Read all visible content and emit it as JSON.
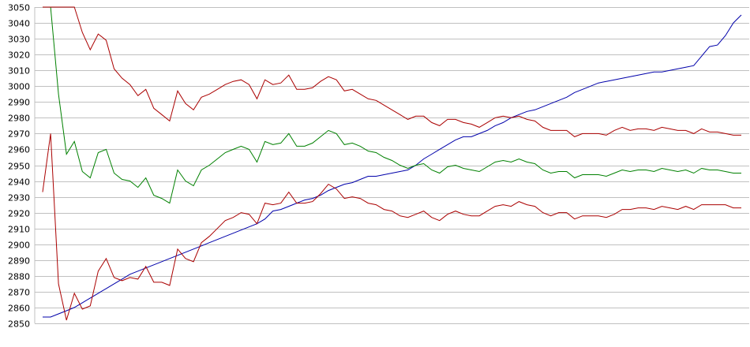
{
  "chart_data": {
    "type": "line",
    "title": "",
    "xlabel": "",
    "ylabel": "",
    "ylim": [
      2850,
      3050
    ],
    "yticks": [
      3050,
      3040,
      3030,
      3020,
      3010,
      3000,
      2990,
      2980,
      2970,
      2960,
      2950,
      2940,
      2930,
      2920,
      2910,
      2900,
      2890,
      2880,
      2870,
      2860,
      2850
    ],
    "grid": true,
    "legend": "none",
    "x": [
      1,
      2,
      3,
      4,
      5,
      6,
      7,
      8,
      9,
      10,
      11,
      12,
      13,
      14,
      15,
      16,
      17,
      18,
      19,
      20,
      21,
      22,
      23,
      24,
      25,
      26,
      27,
      28,
      29,
      30,
      31,
      32,
      33,
      34,
      35,
      36,
      37,
      38,
      39,
      40,
      41,
      42,
      43,
      44,
      45,
      46,
      47,
      48,
      49,
      50,
      51,
      52,
      53,
      54,
      55,
      56,
      57,
      58,
      59,
      60,
      61,
      62,
      63,
      64,
      65,
      66,
      67,
      68,
      69,
      70,
      71,
      72,
      73,
      74,
      75,
      76,
      77,
      78,
      79,
      80,
      81,
      82,
      83,
      84,
      85,
      86,
      87,
      88,
      89
    ],
    "series": [
      {
        "color": "#0000aa",
        "values": [
          2854,
          2854,
          2856,
          2858,
          2860,
          2863,
          2866,
          2869,
          2872,
          2875,
          2878,
          2881,
          2883,
          2885,
          2887,
          2889,
          2891,
          2893,
          2895,
          2897,
          2899,
          2901,
          2903,
          2905,
          2907,
          2909,
          2911,
          2913,
          2916,
          2921,
          2922,
          2924,
          2926,
          2928,
          2929,
          2931,
          2934,
          2936,
          2938,
          2939,
          2941,
          2943,
          2943,
          2944,
          2945,
          2946,
          2947,
          2950,
          2954,
          2957,
          2960,
          2963,
          2966,
          2968,
          2968,
          2970,
          2972,
          2975,
          2977,
          2980,
          2982,
          2984,
          2985,
          2987,
          2989,
          2991,
          2993,
          2996,
          2998,
          3000,
          3002,
          3003,
          3004,
          3005,
          3006,
          3007,
          3008,
          3009,
          3009,
          3010,
          3011,
          3012,
          3013,
          3019,
          3025,
          3026,
          3032,
          3040,
          3045
        ]
      },
      {
        "color": "#008000",
        "values": [
          3050,
          3050,
          2995,
          2957,
          2965,
          2946,
          2942,
          2958,
          2960,
          2945,
          2941,
          2940,
          2936,
          2942,
          2931,
          2929,
          2926,
          2947,
          2940,
          2937,
          2947,
          2950,
          2954,
          2958,
          2960,
          2962,
          2960,
          2952,
          2965,
          2963,
          2964,
          2970,
          2962,
          2962,
          2964,
          2968,
          2972,
          2970,
          2963,
          2964,
          2962,
          2959,
          2958,
          2955,
          2953,
          2950,
          2948,
          2950,
          2951,
          2947,
          2945,
          2949,
          2950,
          2948,
          2947,
          2946,
          2949,
          2952,
          2953,
          2952,
          2954,
          2952,
          2951,
          2947,
          2945,
          2946,
          2946,
          2942,
          2944,
          2944,
          2944,
          2943,
          2945,
          2947,
          2946,
          2947,
          2947,
          2946,
          2948,
          2947,
          2946,
          2947,
          2945,
          2948,
          2947,
          2947,
          2946,
          2945,
          2945
        ]
      },
      {
        "color": "#aa0000",
        "values": [
          3050,
          3050,
          3050,
          3050,
          3050,
          3034,
          3023,
          3033,
          3029,
          3011,
          3005,
          3001,
          2994,
          2998,
          2986,
          2982,
          2978,
          2997,
          2989,
          2985,
          2993,
          2995,
          2998,
          3001,
          3003,
          3004,
          3001,
          2992,
          3004,
          3001,
          3002,
          3007,
          2998,
          2998,
          2999,
          3003,
          3006,
          3004,
          2997,
          2998,
          2995,
          2992,
          2991,
          2988,
          2985,
          2982,
          2979,
          2981,
          2981,
          2977,
          2975,
          2979,
          2979,
          2977,
          2976,
          2974,
          2977,
          2980,
          2981,
          2980,
          2981,
          2979,
          2978,
          2974,
          2972,
          2972,
          2972,
          2968,
          2970,
          2970,
          2970,
          2969,
          2972,
          2974,
          2972,
          2973,
          2973,
          2972,
          2974,
          2973,
          2972,
          2972,
          2970,
          2973,
          2971,
          2971,
          2970,
          2969,
          2969
        ]
      },
      {
        "color": "#aa0000",
        "values": [
          2933,
          2970,
          2875,
          2852,
          2869,
          2859,
          2861,
          2883,
          2891,
          2879,
          2877,
          2879,
          2878,
          2886,
          2876,
          2876,
          2874,
          2897,
          2891,
          2889,
          2901,
          2905,
          2910,
          2915,
          2917,
          2920,
          2919,
          2913,
          2926,
          2925,
          2926,
          2933,
          2926,
          2926,
          2927,
          2932,
          2938,
          2935,
          2929,
          2930,
          2929,
          2926,
          2925,
          2922,
          2921,
          2918,
          2917,
          2919,
          2921,
          2917,
          2915,
          2919,
          2921,
          2919,
          2918,
          2918,
          2921,
          2924,
          2925,
          2924,
          2927,
          2925,
          2924,
          2920,
          2918,
          2920,
          2920,
          2916,
          2918,
          2918,
          2918,
          2917,
          2919,
          2922,
          2922,
          2923,
          2923,
          2922,
          2924,
          2923,
          2922,
          2924,
          2922,
          2925,
          2925,
          2925,
          2925,
          2923,
          2923
        ]
      }
    ]
  }
}
